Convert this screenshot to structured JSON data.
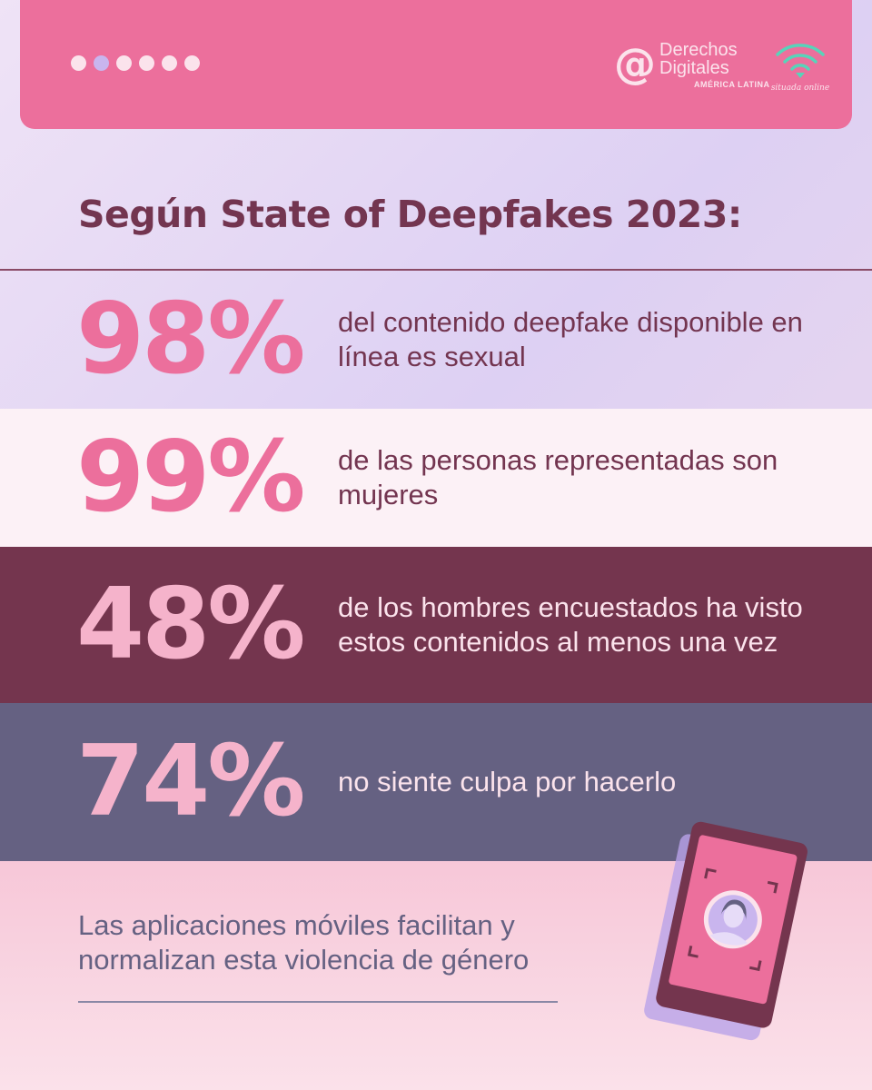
{
  "header": {
    "dots": [
      {
        "active": false
      },
      {
        "active": true
      },
      {
        "active": false
      },
      {
        "active": false
      },
      {
        "active": false
      },
      {
        "active": false
      }
    ],
    "logo_derechos": {
      "line1": "Derechos",
      "line2": "Digitales",
      "line3": "AMÉRICA LATINA"
    },
    "logo_situada": {
      "text": "situada online"
    }
  },
  "title": "Según State of Deepfakes 2023:",
  "stats": [
    {
      "percent": "98%",
      "text": "del contenido deepfake disponible en línea es sexual"
    },
    {
      "percent": "99%",
      "text": "de las personas representadas son mujeres"
    },
    {
      "percent": "48%",
      "text": "de los hombres encuestados ha visto estos contenidos al menos una vez"
    },
    {
      "percent": "74%",
      "text": "no siente culpa por hacerlo"
    }
  ],
  "footer": {
    "text": "Las aplicaciones móviles facilitan y normalizan esta violencia de género"
  },
  "colors": {
    "pink": "#ec6f9c",
    "light_pink": "#f5b3cb",
    "wine": "#74354e",
    "slate": "#656182",
    "lavender": "#c9b5ee",
    "teal": "#58d3b9"
  }
}
